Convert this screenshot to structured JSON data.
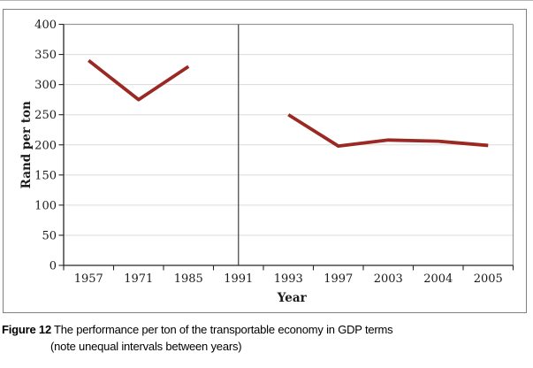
{
  "caption": {
    "figure_label": "Figure 12",
    "line1": "The performance per ton of the transportable economy in GDP terms",
    "line2": "(note unequal intervals between years)"
  },
  "chart_data": {
    "type": "line",
    "title": "",
    "categories": [
      "1957",
      "1971",
      "1985",
      "1991",
      "1993",
      "1997",
      "2003",
      "2004",
      "2005"
    ],
    "values": [
      340,
      275,
      330,
      null,
      250,
      198,
      208,
      206,
      199
    ],
    "xlabel": "Year",
    "ylabel": "Rand per ton",
    "ylim": [
      0,
      400
    ],
    "ytick_step": 50,
    "yticks": [
      0,
      50,
      100,
      150,
      200,
      250,
      300,
      350,
      400
    ],
    "grid": "horizontal",
    "legend": "none",
    "divider_at_category": "1991",
    "colors": {
      "line": "#9a2823",
      "gridline": "#dadada",
      "plot_border": "#999999",
      "axis": "#262626",
      "divider": "#4d4d4d",
      "frame_border": "#7f7f7f"
    }
  }
}
